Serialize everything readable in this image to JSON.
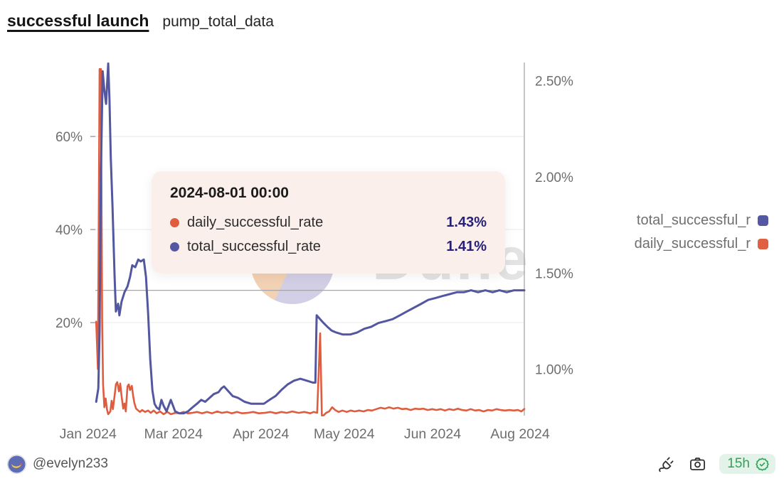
{
  "header": {
    "title": "successful launch",
    "subtitle": "pump_total_data"
  },
  "watermark": {
    "text": "Dune"
  },
  "tooltip": {
    "title": "2024-08-01 00:00",
    "rows": [
      {
        "label": "daily_successful_rate",
        "value": "1.43%",
        "color": "#E05C3E"
      },
      {
        "label": "total_successful_rate",
        "value": "1.41%",
        "color": "#5458A4"
      }
    ]
  },
  "legend": {
    "items": [
      {
        "label": "total_successful_r",
        "color": "#5458A4"
      },
      {
        "label": "daily_successful_r",
        "color": "#E0603F"
      }
    ]
  },
  "footer": {
    "author": "@evelyn233",
    "badge_text": "15h"
  },
  "colors": {
    "daily": "#E05C3E",
    "total": "#5357A0",
    "grid": "#ececec",
    "axis_text": "#6e6e6e",
    "crosshair": "#a6a6a6",
    "tick": "#9c9c9c"
  },
  "chart_data": {
    "type": "line",
    "title": "successful launch — pump_total_data",
    "legend_position": "right",
    "grid": "horizontal-left-axis-only",
    "x_axis": {
      "type": "time",
      "ticks": [
        {
          "pos": -0.017,
          "label": "Jan 2024"
        },
        {
          "pos": 0.182,
          "label": "Mar 2024"
        },
        {
          "pos": 0.386,
          "label": "Apr 2024"
        },
        {
          "pos": 0.58,
          "label": "May 2024"
        },
        {
          "pos": 0.786,
          "label": "Jun 2024"
        },
        {
          "pos": 0.99,
          "label": "Aug 2024"
        }
      ]
    },
    "y_left": {
      "series": "daily_successful_rate",
      "min": 0,
      "max": 75.9,
      "ticks": [
        {
          "v": 20,
          "label": "20%"
        },
        {
          "v": 40,
          "label": "40%"
        },
        {
          "v": 60,
          "label": "60%"
        }
      ]
    },
    "y_right": {
      "series": "total_successful_rate",
      "min": 0.758,
      "max": 2.595,
      "ticks": [
        {
          "v": 1.0,
          "label": "1.00%"
        },
        {
          "v": 1.5,
          "label": "1.50%"
        },
        {
          "v": 2.0,
          "label": "2.00%"
        },
        {
          "v": 2.5,
          "label": "2.50%"
        }
      ]
    },
    "crosshair": {
      "x_pos": 1.0,
      "axis": "right",
      "value": 1.41
    },
    "series": [
      {
        "name": "daily_successful_rate",
        "axis": "left",
        "color": "#E05C3E",
        "width": 2.6,
        "points": [
          [
            0.002,
            20.2
          ],
          [
            0.006,
            10.0
          ],
          [
            0.01,
            74.5
          ],
          [
            0.013,
            74.5
          ],
          [
            0.016,
            20.0
          ],
          [
            0.018,
            6.7
          ],
          [
            0.021,
            1.8
          ],
          [
            0.024,
            3.7
          ],
          [
            0.027,
            1.4
          ],
          [
            0.03,
            0.3
          ],
          [
            0.035,
            0.9
          ],
          [
            0.038,
            3.2
          ],
          [
            0.041,
            1.4
          ],
          [
            0.045,
            4.3
          ],
          [
            0.048,
            6.7
          ],
          [
            0.051,
            7.2
          ],
          [
            0.055,
            5.2
          ],
          [
            0.058,
            6.9
          ],
          [
            0.061,
            4.3
          ],
          [
            0.065,
            1.5
          ],
          [
            0.068,
            2.6
          ],
          [
            0.071,
            0.9
          ],
          [
            0.075,
            6.3
          ],
          [
            0.078,
            6.7
          ],
          [
            0.081,
            5.5
          ],
          [
            0.085,
            6.4
          ],
          [
            0.088,
            4.3
          ],
          [
            0.091,
            2.7
          ],
          [
            0.095,
            1.5
          ],
          [
            0.1,
            1.1
          ],
          [
            0.104,
            0.8
          ],
          [
            0.109,
            1.2
          ],
          [
            0.116,
            0.8
          ],
          [
            0.123,
            1.1
          ],
          [
            0.129,
            0.6
          ],
          [
            0.136,
            1.1
          ],
          [
            0.143,
            0.5
          ],
          [
            0.151,
            0.9
          ],
          [
            0.159,
            0.3
          ],
          [
            0.168,
            0.8
          ],
          [
            0.176,
            0.3
          ],
          [
            0.186,
            0.6
          ],
          [
            0.196,
            0.5
          ],
          [
            0.206,
            0.8
          ],
          [
            0.216,
            0.5
          ],
          [
            0.226,
            0.6
          ],
          [
            0.237,
            0.8
          ],
          [
            0.249,
            0.5
          ],
          [
            0.26,
            0.8
          ],
          [
            0.272,
            0.5
          ],
          [
            0.284,
            0.9
          ],
          [
            0.295,
            0.6
          ],
          [
            0.307,
            0.8
          ],
          [
            0.318,
            0.5
          ],
          [
            0.33,
            0.8
          ],
          [
            0.342,
            0.5
          ],
          [
            0.355,
            0.6
          ],
          [
            0.368,
            0.8
          ],
          [
            0.381,
            0.5
          ],
          [
            0.395,
            0.6
          ],
          [
            0.408,
            0.8
          ],
          [
            0.421,
            0.5
          ],
          [
            0.434,
            0.8
          ],
          [
            0.446,
            0.6
          ],
          [
            0.459,
            0.9
          ],
          [
            0.474,
            0.6
          ],
          [
            0.487,
            0.8
          ],
          [
            0.501,
            0.5
          ],
          [
            0.509,
            0.8
          ],
          [
            0.517,
            0.6
          ],
          [
            0.524,
            17.7
          ],
          [
            0.528,
            0.05
          ],
          [
            0.532,
            0.05
          ],
          [
            0.538,
            0.6
          ],
          [
            0.545,
            0.9
          ],
          [
            0.552,
            1.8
          ],
          [
            0.559,
            1.2
          ],
          [
            0.567,
            0.8
          ],
          [
            0.576,
            1.1
          ],
          [
            0.586,
            0.8
          ],
          [
            0.595,
            1.1
          ],
          [
            0.605,
            0.9
          ],
          [
            0.615,
            1.1
          ],
          [
            0.625,
            0.9
          ],
          [
            0.635,
            1.2
          ],
          [
            0.645,
            1.1
          ],
          [
            0.655,
            1.4
          ],
          [
            0.665,
            1.7
          ],
          [
            0.675,
            1.5
          ],
          [
            0.685,
            1.8
          ],
          [
            0.695,
            1.5
          ],
          [
            0.705,
            1.7
          ],
          [
            0.715,
            1.4
          ],
          [
            0.725,
            1.5
          ],
          [
            0.735,
            1.2
          ],
          [
            0.745,
            1.5
          ],
          [
            0.755,
            1.4
          ],
          [
            0.765,
            1.5
          ],
          [
            0.775,
            1.2
          ],
          [
            0.785,
            1.4
          ],
          [
            0.795,
            1.2
          ],
          [
            0.805,
            1.4
          ],
          [
            0.815,
            1.1
          ],
          [
            0.825,
            1.4
          ],
          [
            0.835,
            1.2
          ],
          [
            0.845,
            1.5
          ],
          [
            0.855,
            1.2
          ],
          [
            0.865,
            1.1
          ],
          [
            0.875,
            1.4
          ],
          [
            0.885,
            1.1
          ],
          [
            0.895,
            1.2
          ],
          [
            0.905,
            0.9
          ],
          [
            0.915,
            1.2
          ],
          [
            0.925,
            1.1
          ],
          [
            0.935,
            1.4
          ],
          [
            0.945,
            1.2
          ],
          [
            0.955,
            1.1
          ],
          [
            0.965,
            1.2
          ],
          [
            0.975,
            1.1
          ],
          [
            0.985,
            1.2
          ],
          [
            0.993,
            0.9
          ],
          [
            1.0,
            1.43
          ]
        ]
      },
      {
        "name": "total_successful_rate",
        "axis": "right",
        "color": "#5357A0",
        "width": 3,
        "points": [
          [
            0.002,
            0.83
          ],
          [
            0.007,
            0.9
          ],
          [
            0.01,
            1.2
          ],
          [
            0.013,
            2.0
          ],
          [
            0.017,
            2.55
          ],
          [
            0.021,
            2.45
          ],
          [
            0.025,
            2.38
          ],
          [
            0.03,
            2.59
          ],
          [
            0.033,
            2.4
          ],
          [
            0.036,
            2.1
          ],
          [
            0.04,
            1.85
          ],
          [
            0.045,
            1.48
          ],
          [
            0.048,
            1.3
          ],
          [
            0.053,
            1.34
          ],
          [
            0.056,
            1.28
          ],
          [
            0.061,
            1.35
          ],
          [
            0.068,
            1.4
          ],
          [
            0.075,
            1.43
          ],
          [
            0.081,
            1.48
          ],
          [
            0.086,
            1.54
          ],
          [
            0.093,
            1.53
          ],
          [
            0.1,
            1.57
          ],
          [
            0.106,
            1.56
          ],
          [
            0.113,
            1.57
          ],
          [
            0.118,
            1.48
          ],
          [
            0.123,
            1.29
          ],
          [
            0.128,
            1.05
          ],
          [
            0.133,
            0.89
          ],
          [
            0.138,
            0.82
          ],
          [
            0.143,
            0.8
          ],
          [
            0.149,
            0.79
          ],
          [
            0.154,
            0.84
          ],
          [
            0.159,
            0.81
          ],
          [
            0.166,
            0.78
          ],
          [
            0.176,
            0.84
          ],
          [
            0.186,
            0.78
          ],
          [
            0.196,
            0.77
          ],
          [
            0.206,
            0.77
          ],
          [
            0.216,
            0.78
          ],
          [
            0.226,
            0.8
          ],
          [
            0.237,
            0.82
          ],
          [
            0.247,
            0.84
          ],
          [
            0.256,
            0.83
          ],
          [
            0.266,
            0.85
          ],
          [
            0.276,
            0.87
          ],
          [
            0.287,
            0.88
          ],
          [
            0.294,
            0.9
          ],
          [
            0.3,
            0.91
          ],
          [
            0.308,
            0.89
          ],
          [
            0.32,
            0.86
          ],
          [
            0.333,
            0.85
          ],
          [
            0.348,
            0.83
          ],
          [
            0.363,
            0.82
          ],
          [
            0.378,
            0.82
          ],
          [
            0.393,
            0.82
          ],
          [
            0.406,
            0.84
          ],
          [
            0.42,
            0.86
          ],
          [
            0.433,
            0.89
          ],
          [
            0.448,
            0.92
          ],
          [
            0.463,
            0.94
          ],
          [
            0.478,
            0.95
          ],
          [
            0.493,
            0.94
          ],
          [
            0.507,
            0.93
          ],
          [
            0.513,
            0.93
          ],
          [
            0.516,
            1.28
          ],
          [
            0.524,
            1.26
          ],
          [
            0.532,
            1.24
          ],
          [
            0.541,
            1.22
          ],
          [
            0.551,
            1.2
          ],
          [
            0.562,
            1.19
          ],
          [
            0.577,
            1.18
          ],
          [
            0.594,
            1.18
          ],
          [
            0.61,
            1.19
          ],
          [
            0.627,
            1.21
          ],
          [
            0.643,
            1.22
          ],
          [
            0.66,
            1.24
          ],
          [
            0.677,
            1.25
          ],
          [
            0.693,
            1.26
          ],
          [
            0.71,
            1.28
          ],
          [
            0.726,
            1.3
          ],
          [
            0.743,
            1.32
          ],
          [
            0.76,
            1.34
          ],
          [
            0.776,
            1.36
          ],
          [
            0.793,
            1.37
          ],
          [
            0.809,
            1.38
          ],
          [
            0.826,
            1.39
          ],
          [
            0.843,
            1.4
          ],
          [
            0.859,
            1.4
          ],
          [
            0.876,
            1.41
          ],
          [
            0.892,
            1.4
          ],
          [
            0.909,
            1.41
          ],
          [
            0.926,
            1.4
          ],
          [
            0.942,
            1.41
          ],
          [
            0.959,
            1.4
          ],
          [
            0.976,
            1.41
          ],
          [
            1.0,
            1.41
          ]
        ]
      }
    ]
  }
}
